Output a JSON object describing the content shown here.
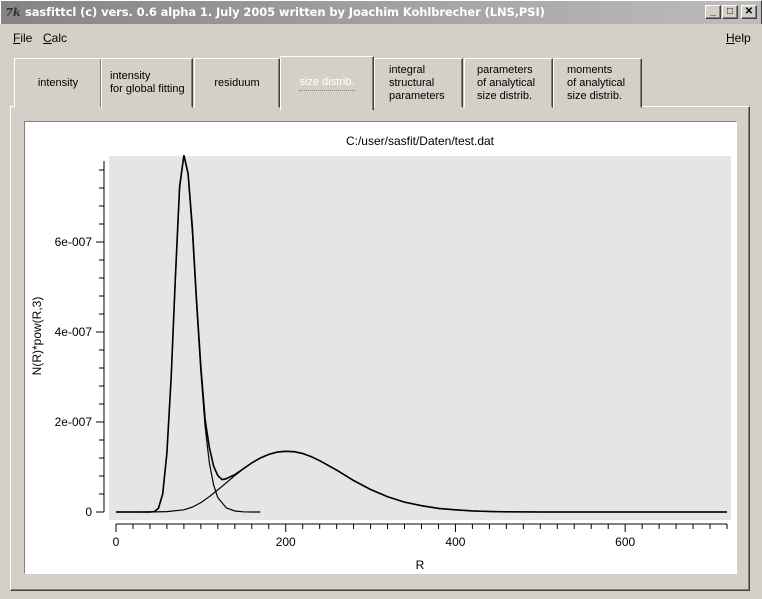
{
  "window": {
    "title": "sasfittcl (c) vers. 0.6 alpha 1. July 2005 written by Joachim Kohlbrecher (LNS,PSI)",
    "icon": "tk-feather-icon",
    "minimize_label": "_",
    "maximize_label": "□",
    "close_label": "✕"
  },
  "menu": {
    "file_accel": "F",
    "file_rest": "ile",
    "calc_accel": "C",
    "calc_rest": "alc",
    "help_accel": "H",
    "help_rest": "elp"
  },
  "tabs": [
    {
      "label": "intensity",
      "active": false
    },
    {
      "label": "intensity\nfor global fitting",
      "active": false
    },
    {
      "label": "residuum",
      "active": false
    },
    {
      "label": "size distrib.",
      "active": true
    },
    {
      "label": "integral\nstructural\nparameters",
      "active": false
    },
    {
      "label": "parameters\nof analytical\nsize distrib.",
      "active": false
    },
    {
      "label": "moments\nof analytical\nsize distrib.",
      "active": false
    }
  ],
  "chart_data": {
    "type": "line",
    "title": "C:/user/sasfit/Daten/test.dat",
    "xlabel": "R",
    "ylabel": "N(R)*pow(R,3)",
    "xlim": [
      0,
      720
    ],
    "ylim": [
      0,
      7.8e-07
    ],
    "x_ticks": [
      "0",
      "200",
      "400",
      "600"
    ],
    "y_ticks": [
      "0",
      "2e-007",
      "4e-007",
      "6e-007"
    ],
    "plot_background": "#e5e5e5",
    "series": [
      {
        "x": [
          30,
          40,
          45,
          50,
          55,
          60,
          65,
          70,
          75,
          80,
          85,
          90,
          95,
          100,
          105,
          110,
          115,
          120,
          130,
          140,
          150,
          160,
          170
        ],
        "values": [
          0,
          5e-11,
          1e-09,
          8e-09,
          4e-08,
          1.3e-07,
          3e-07,
          5.2e-07,
          7.2e-07,
          7.92e-07,
          7.5e-07,
          6.2e-07,
          4.6e-07,
          3.1e-07,
          1.9e-07,
          1.1e-07,
          6e-08,
          3.2e-08,
          9e-09,
          2.3e-09,
          5e-10,
          1e-10,
          0
        ]
      },
      {
        "x": [
          0,
          40,
          60,
          80,
          90,
          100,
          110,
          120,
          130,
          140,
          150,
          160,
          170,
          180,
          190,
          200,
          210,
          220,
          230,
          240,
          260,
          280,
          300,
          320,
          340,
          360,
          380,
          400,
          420,
          440,
          460,
          500,
          560,
          620,
          720
        ],
        "values": [
          0,
          0,
          1e-09,
          5e-09,
          1.1e-08,
          2.1e-08,
          3.4e-08,
          4.9e-08,
          6.5e-08,
          8.1e-08,
          9.6e-08,
          1.09e-07,
          1.2e-07,
          1.28e-07,
          1.33e-07,
          1.35e-07,
          1.34e-07,
          1.3e-07,
          1.23e-07,
          1.14e-07,
          9.3e-08,
          7e-08,
          5e-08,
          3.4e-08,
          2.2e-08,
          1.4e-08,
          8e-09,
          5e-09,
          2.5e-09,
          1.2e-09,
          5e-10,
          1e-10,
          0,
          0,
          0
        ]
      },
      {
        "x": [
          0,
          30,
          40,
          45,
          50,
          55,
          60,
          65,
          70,
          75,
          80,
          85,
          90,
          95,
          100,
          105,
          110,
          115,
          120,
          125,
          130,
          140,
          150,
          160,
          170,
          180,
          190,
          200,
          210,
          220,
          230,
          240,
          260,
          280,
          300,
          320,
          340,
          360,
          380,
          400,
          420,
          440,
          460,
          500,
          560,
          620,
          720
        ],
        "values": [
          0,
          0,
          0,
          1e-09,
          8e-09,
          4e-08,
          1.31e-07,
          3.01e-07,
          5.22e-07,
          7.23e-07,
          7.93e-07,
          7.52e-07,
          6.31e-07,
          4.68e-07,
          3.21e-07,
          2.06e-07,
          1.44e-07,
          1.02e-07,
          8.1e-08,
          7.2e-08,
          7.4e-08,
          8.3e-08,
          9.6e-08,
          1.09e-07,
          1.2e-07,
          1.28e-07,
          1.33e-07,
          1.35e-07,
          1.34e-07,
          1.3e-07,
          1.23e-07,
          1.14e-07,
          9.3e-08,
          7e-08,
          5e-08,
          3.4e-08,
          2.2e-08,
          1.4e-08,
          8e-09,
          5e-09,
          2.5e-09,
          1.2e-09,
          5e-10,
          1e-10,
          0,
          0,
          0
        ]
      }
    ]
  }
}
